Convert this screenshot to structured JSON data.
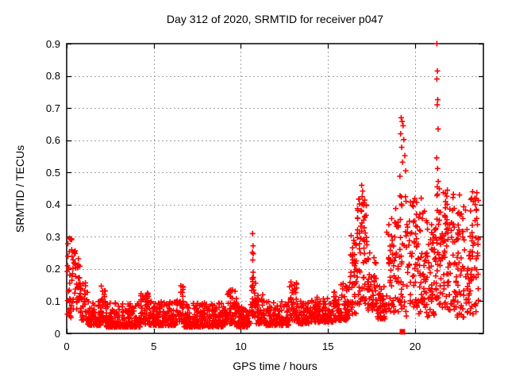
{
  "chart_data": {
    "type": "scatter",
    "title": "Day 312 of 2020, SRMTID for receiver p047",
    "xlabel": "GPS time / hours",
    "ylabel": "SRMTID / TECUs",
    "xlim": [
      0,
      23.92
    ],
    "ylim": [
      0,
      0.9
    ],
    "xticks": {
      "values": [
        0,
        5,
        10,
        15,
        20
      ],
      "labels": [
        "0",
        "5",
        "10",
        "15",
        "20"
      ]
    },
    "yticks": {
      "values": [
        0,
        0.1,
        0.2,
        0.3,
        0.4,
        0.5,
        0.6,
        0.7,
        0.8,
        0.9
      ],
      "labels": [
        "0",
        "0.1",
        "0.2",
        "0.3",
        "0.4",
        "0.5",
        "0.6",
        "0.7",
        "0.8",
        "0.9"
      ]
    },
    "grid": {
      "show": true,
      "style": "dotted",
      "color": "#a0a0a0"
    },
    "background": "#ffffff",
    "border_color": "#000000",
    "legend": "none",
    "series": [
      {
        "name": "SRMTID",
        "marker": "plus",
        "color": "#ff0000",
        "cloud_segments": [
          [
            0.03,
            0.3,
            32,
            0.04,
            0.3,
            1.2,
            0
          ],
          [
            0.3,
            0.6,
            24,
            0.07,
            0.26,
            1.4,
            0
          ],
          [
            0.6,
            0.8,
            18,
            0.09,
            0.24,
            0.9,
            0
          ],
          [
            0.8,
            1.2,
            34,
            0.04,
            0.17,
            1.7,
            0
          ],
          [
            1.2,
            1.95,
            70,
            0.025,
            0.1,
            2.0,
            0
          ],
          [
            1.95,
            2.25,
            30,
            0.035,
            0.15,
            1.7,
            0
          ],
          [
            2.25,
            4.25,
            190,
            0.02,
            0.095,
            2.1,
            0
          ],
          [
            4.25,
            4.7,
            48,
            0.03,
            0.135,
            1.7,
            0
          ],
          [
            4.7,
            6.25,
            150,
            0.025,
            0.1,
            2.1,
            0
          ],
          [
            6.25,
            6.7,
            44,
            0.035,
            0.16,
            1.7,
            0
          ],
          [
            6.7,
            9.2,
            240,
            0.02,
            0.095,
            2.1,
            0
          ],
          [
            9.2,
            9.75,
            50,
            0.03,
            0.135,
            1.7,
            0
          ],
          [
            9.75,
            10.55,
            75,
            0.02,
            0.085,
            2.1,
            0
          ],
          [
            10.55,
            10.85,
            30,
            0.05,
            0.175,
            1.4,
            0
          ],
          [
            10.85,
            11.35,
            46,
            0.03,
            0.12,
            1.9,
            0
          ],
          [
            11.35,
            12.75,
            120,
            0.025,
            0.1,
            2.1,
            0
          ],
          [
            12.75,
            13.25,
            42,
            0.04,
            0.16,
            1.6,
            0
          ],
          [
            13.25,
            13.95,
            60,
            0.03,
            0.1,
            2.0,
            0
          ],
          [
            13.95,
            15.3,
            120,
            0.035,
            0.12,
            1.9,
            0
          ],
          [
            15.3,
            16.25,
            85,
            0.04,
            0.155,
            1.8,
            0
          ],
          [
            16.25,
            16.65,
            40,
            0.06,
            0.31,
            1.3,
            1
          ],
          [
            16.65,
            17.25,
            60,
            0.09,
            0.42,
            1.2,
            1
          ],
          [
            17.25,
            17.8,
            48,
            0.07,
            0.25,
            1.5,
            1
          ],
          [
            17.8,
            18.35,
            42,
            0.045,
            0.155,
            1.7,
            0
          ],
          [
            18.35,
            19.0,
            52,
            0.06,
            0.4,
            1.4,
            1
          ],
          [
            19.0,
            19.6,
            48,
            0.05,
            0.45,
            1.3,
            1
          ],
          [
            19.6,
            20.15,
            45,
            0.08,
            0.42,
            1.2,
            1
          ],
          [
            20.15,
            20.65,
            48,
            0.06,
            0.4,
            1.2,
            1
          ],
          [
            20.65,
            21.15,
            45,
            0.05,
            0.35,
            1.3,
            1
          ],
          [
            21.15,
            21.5,
            42,
            0.09,
            0.45,
            1.1,
            1
          ],
          [
            21.5,
            22.3,
            75,
            0.07,
            0.44,
            1.2,
            1
          ],
          [
            22.3,
            23.05,
            65,
            0.05,
            0.4,
            1.3,
            1
          ],
          [
            23.05,
            23.65,
            60,
            0.06,
            0.44,
            1.2,
            1
          ]
        ],
        "explicit_points": [
          [
            10.67,
            0.31
          ],
          [
            10.7,
            0.272
          ],
          [
            10.66,
            0.252
          ],
          [
            10.71,
            0.247
          ],
          [
            10.68,
            0.228
          ],
          [
            10.7,
            0.19
          ],
          [
            10.66,
            0.172
          ],
          [
            16.93,
            0.46
          ],
          [
            16.99,
            0.442
          ],
          [
            16.96,
            0.425
          ],
          [
            17.03,
            0.405
          ],
          [
            16.9,
            0.382
          ],
          [
            17.05,
            0.352
          ],
          [
            16.88,
            0.333
          ],
          [
            17.08,
            0.328
          ],
          [
            19.2,
            0.67
          ],
          [
            19.26,
            0.658
          ],
          [
            19.31,
            0.645
          ],
          [
            19.17,
            0.62
          ],
          [
            19.35,
            0.602
          ],
          [
            19.23,
            0.578
          ],
          [
            19.41,
            0.552
          ],
          [
            19.28,
            0.532
          ],
          [
            19.46,
            0.505
          ],
          [
            19.13,
            0.488
          ],
          [
            21.25,
            0.9
          ],
          [
            21.28,
            0.815
          ],
          [
            21.25,
            0.79
          ],
          [
            21.3,
            0.726
          ],
          [
            21.27,
            0.71
          ],
          [
            21.32,
            0.635
          ],
          [
            21.24,
            0.545
          ],
          [
            21.29,
            0.512
          ],
          [
            21.33,
            0.472
          ],
          [
            21.27,
            0.455
          ],
          [
            20.35,
            0.42
          ],
          [
            21.85,
            0.445
          ],
          [
            22.55,
            0.43
          ],
          [
            23.3,
            0.44
          ],
          [
            23.25,
            0.42
          ]
        ]
      }
    ],
    "outlier_square_point": {
      "x": 19.27,
      "y": 0.005,
      "marker": "filled-square",
      "color": "#ff0000"
    }
  }
}
